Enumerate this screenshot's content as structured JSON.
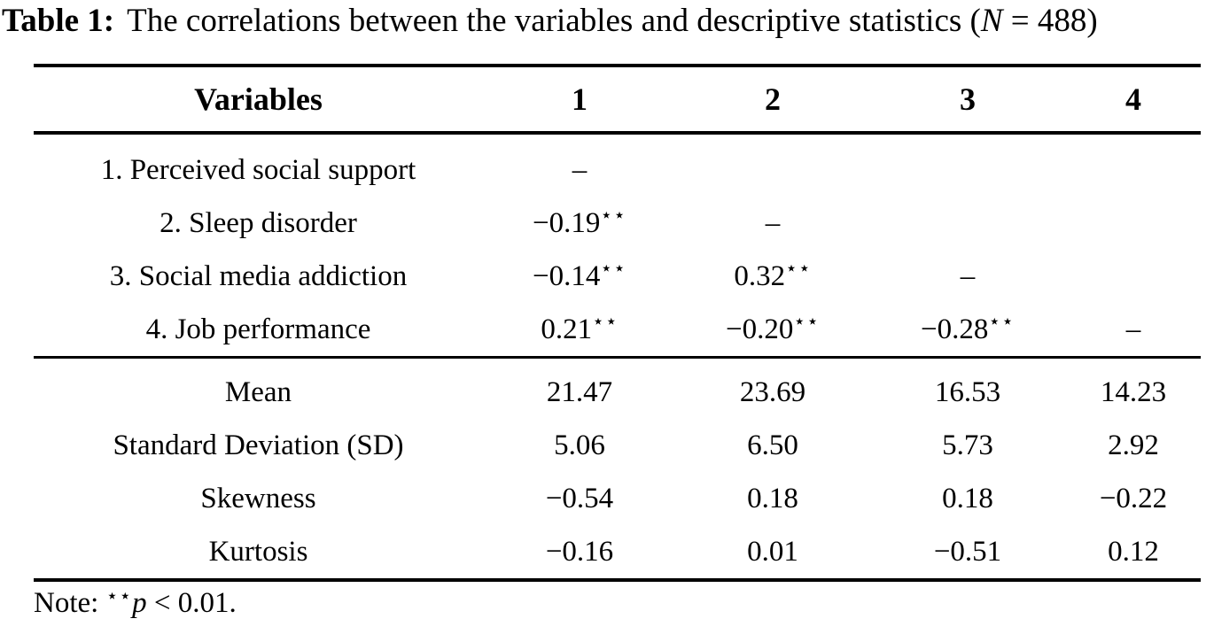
{
  "title": {
    "label": "Table 1:",
    "text": "The correlations between the variables and descriptive statistics (",
    "n_symbol": "N",
    "n_value": " = 488)"
  },
  "table": {
    "header": {
      "variables": "Variables",
      "col1": "1",
      "col2": "2",
      "col3": "3",
      "col4": "4"
    },
    "correlations": {
      "rows": [
        {
          "label": "1. Perceived social support",
          "cells": [
            {
              "v": "–"
            },
            {},
            {},
            {}
          ]
        },
        {
          "label": "2. Sleep disorder",
          "cells": [
            {
              "v": "−0.19",
              "sig": "⋆⋆"
            },
            {
              "v": "–"
            },
            {},
            {}
          ]
        },
        {
          "label": "3. Social media addiction",
          "cells": [
            {
              "v": "−0.14",
              "sig": "⋆⋆"
            },
            {
              "v": "0.32",
              "sig": "⋆⋆"
            },
            {
              "v": "–"
            },
            {}
          ]
        },
        {
          "label": "4. Job performance",
          "cells": [
            {
              "v": "0.21",
              "sig": "⋆⋆"
            },
            {
              "v": "−0.20",
              "sig": "⋆⋆"
            },
            {
              "v": "−0.28",
              "sig": "⋆⋆"
            },
            {
              "v": "–"
            }
          ]
        }
      ]
    },
    "stats": {
      "rows": [
        {
          "label": "Mean",
          "values": [
            "21.47",
            "23.69",
            "16.53",
            "14.23"
          ]
        },
        {
          "label": "Standard Deviation (SD)",
          "values": [
            "5.06",
            "6.50",
            "5.73",
            "2.92"
          ]
        },
        {
          "label": "Skewness",
          "values": [
            "−0.54",
            "0.18",
            "0.18",
            "−0.22"
          ]
        },
        {
          "label": "Kurtosis",
          "values": [
            "−0.16",
            "0.01",
            "−0.51",
            "0.12"
          ]
        }
      ]
    }
  },
  "note": {
    "prefix": "Note: ",
    "stars": "⋆⋆",
    "p_symbol": "p",
    "condition": " < 0.01."
  }
}
